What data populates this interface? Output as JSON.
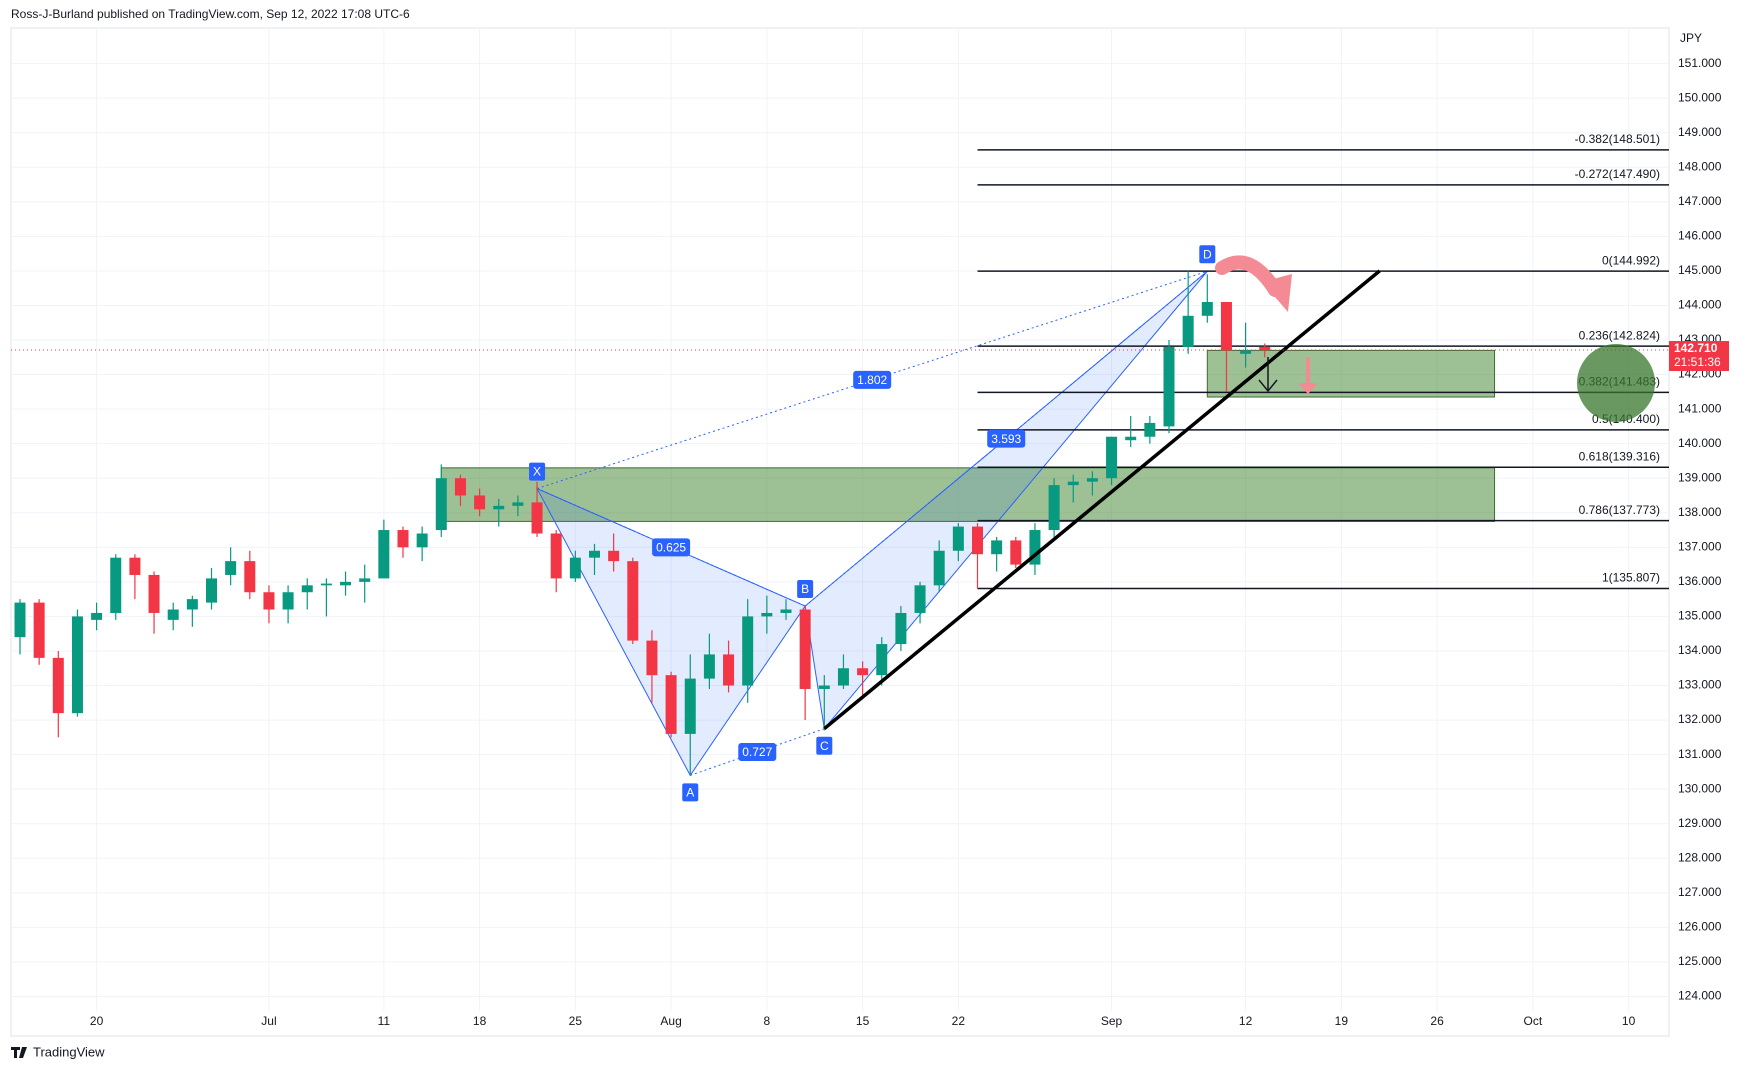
{
  "chart_data": {
    "type": "candlestick",
    "title": "Ross-J-Burland published on TradingView.com, Sep 12, 2022 17:08 UTC-6",
    "currency": "JPY",
    "brand": "TradingView",
    "up_color": "#089981",
    "down_color": "#f23645",
    "grid": true,
    "categories": [
      null,
      null,
      null,
      null,
      "20",
      null,
      null,
      null,
      null,
      null,
      null,
      null,
      null,
      "Jul",
      null,
      null,
      null,
      null,
      null,
      "11",
      null,
      null,
      null,
      null,
      "18",
      null,
      null,
      null,
      null,
      "25",
      null,
      null,
      null,
      null,
      "Aug",
      null,
      null,
      null,
      null,
      "8",
      null,
      null,
      null,
      null,
      "15",
      null,
      null,
      null,
      null,
      "22",
      null,
      null,
      null,
      null,
      null,
      null,
      null,
      "Sep",
      null,
      null,
      null,
      null,
      null,
      null,
      "12",
      null,
      null,
      null,
      null,
      "19",
      null,
      null,
      null,
      null,
      "26",
      null,
      null,
      null,
      null,
      "Oct",
      null,
      null,
      null,
      null,
      "10",
      null,
      null
    ],
    "open": [
      134.4,
      135.4,
      133.8,
      132.2,
      134.9,
      135.1,
      136.7,
      136.2,
      134.9,
      135.2,
      135.4,
      136.2,
      136.6,
      135.7,
      135.2,
      135.7,
      135.9,
      135.9,
      136.0,
      136.1,
      137.5,
      137.0,
      137.5,
      139.0,
      138.5,
      138.1,
      138.2,
      138.3,
      137.4,
      136.1,
      136.7,
      136.9,
      136.6,
      134.3,
      133.3,
      131.6,
      133.2,
      133.9,
      133.0,
      135.0,
      135.1,
      135.2,
      132.9,
      133.0,
      133.5,
      133.3,
      134.2,
      135.1,
      135.9,
      136.9,
      137.6,
      136.8,
      137.2,
      136.5,
      137.5,
      138.8,
      138.9,
      139.0,
      140.1,
      140.2,
      140.5,
      142.8,
      143.7,
      144.1,
      142.6,
      142.8,
      null,
      null,
      null,
      null,
      null,
      null,
      null,
      null,
      null,
      null,
      null,
      null,
      null,
      null,
      null,
      null,
      null,
      null,
      null,
      null,
      null
    ],
    "high": [
      135.5,
      135.5,
      134.0,
      135.2,
      135.4,
      136.8,
      136.8,
      136.3,
      135.4,
      135.6,
      136.4,
      137.0,
      136.9,
      135.9,
      135.9,
      136.1,
      136.1,
      136.3,
      136.5,
      137.8,
      137.6,
      137.6,
      139.4,
      139.1,
      138.7,
      138.4,
      138.5,
      138.9,
      137.5,
      136.9,
      137.1,
      137.4,
      136.7,
      134.6,
      133.4,
      133.9,
      134.5,
      134.3,
      135.5,
      135.6,
      135.5,
      135.3,
      133.3,
      133.9,
      133.7,
      134.4,
      135.3,
      136.0,
      137.2,
      137.7,
      137.7,
      137.3,
      137.3,
      137.7,
      139.0,
      139.1,
      139.2,
      140.2,
      140.8,
      140.8,
      143.0,
      144.99,
      144.9,
      144.1,
      143.5,
      142.9,
      null,
      null,
      null,
      null,
      null,
      null,
      null,
      null,
      null,
      null,
      null,
      null,
      null,
      null,
      null,
      null,
      null,
      null,
      null,
      null,
      null
    ],
    "low": [
      133.9,
      133.6,
      131.5,
      132.1,
      134.6,
      134.9,
      135.5,
      134.5,
      134.6,
      134.7,
      135.2,
      135.9,
      135.5,
      134.8,
      134.8,
      135.2,
      135.0,
      135.6,
      135.4,
      136.1,
      136.7,
      136.6,
      137.3,
      138.2,
      137.9,
      137.6,
      137.9,
      137.3,
      135.7,
      136.0,
      136.2,
      136.3,
      134.2,
      132.5,
      131.5,
      130.4,
      132.9,
      132.8,
      132.5,
      134.5,
      134.9,
      132.0,
      131.7,
      132.9,
      132.6,
      133.0,
      134.0,
      134.8,
      135.7,
      136.6,
      135.8,
      136.3,
      136.4,
      136.2,
      137.3,
      138.3,
      138.5,
      138.8,
      139.9,
      140.0,
      140.3,
      142.6,
      143.5,
      141.5,
      142.2,
      142.5,
      null,
      null,
      null,
      null,
      null,
      null,
      null,
      null,
      null,
      null,
      null,
      null,
      null,
      null,
      null,
      null,
      null,
      null,
      null,
      null,
      null
    ],
    "close": [
      135.4,
      133.8,
      132.2,
      135.0,
      135.1,
      136.7,
      136.2,
      135.1,
      135.2,
      135.5,
      136.1,
      136.6,
      135.7,
      135.2,
      135.7,
      135.9,
      135.95,
      136.0,
      136.1,
      137.5,
      137.0,
      137.4,
      139.0,
      138.5,
      138.1,
      138.2,
      138.3,
      137.4,
      136.1,
      136.7,
      136.9,
      136.6,
      134.3,
      133.3,
      131.6,
      133.2,
      133.9,
      133.0,
      135.0,
      135.1,
      135.2,
      132.9,
      133.0,
      133.5,
      133.3,
      134.2,
      135.1,
      135.9,
      136.9,
      137.6,
      136.8,
      137.2,
      136.5,
      137.5,
      138.8,
      138.9,
      139.0,
      140.2,
      140.2,
      140.6,
      142.8,
      143.7,
      144.1,
      142.7,
      142.7,
      142.71,
      null,
      null,
      null,
      null,
      null,
      null,
      null,
      null,
      null,
      null,
      null,
      null,
      null,
      null,
      null,
      null,
      null,
      null,
      null,
      null,
      null
    ],
    "ylim": [
      123.58,
      152.03
    ],
    "yticks": [
      {
        "value": 124,
        "label": "124.000"
      },
      {
        "value": 125,
        "label": "125.000"
      },
      {
        "value": 126,
        "label": "126.000"
      },
      {
        "value": 127,
        "label": "127.000"
      },
      {
        "value": 128,
        "label": "128.000"
      },
      {
        "value": 129,
        "label": "129.000"
      },
      {
        "value": 130,
        "label": "130.000"
      },
      {
        "value": 131,
        "label": "131.000"
      },
      {
        "value": 132,
        "label": "132.000"
      },
      {
        "value": 133,
        "label": "133.000"
      },
      {
        "value": 134,
        "label": "134.000"
      },
      {
        "value": 135,
        "label": "135.000"
      },
      {
        "value": 136,
        "label": "136.000"
      },
      {
        "value": 137,
        "label": "137.000"
      },
      {
        "value": 138,
        "label": "138.000"
      },
      {
        "value": 139,
        "label": "139.000"
      },
      {
        "value": 140,
        "label": "140.000"
      },
      {
        "value": 141,
        "label": "141.000"
      },
      {
        "value": 142,
        "label": "142.000"
      },
      {
        "value": 143,
        "label": "143.000"
      },
      {
        "value": 144,
        "label": "144.000"
      },
      {
        "value": 145,
        "label": "145.000"
      },
      {
        "value": 146,
        "label": "146.000"
      },
      {
        "value": 147,
        "label": "147.000"
      },
      {
        "value": 148,
        "label": "148.000"
      },
      {
        "value": 149,
        "label": "149.000"
      },
      {
        "value": 150,
        "label": "150.000"
      },
      {
        "value": 151,
        "label": "151.000"
      }
    ],
    "last_price": {
      "value": 142.71,
      "label": "142.710"
    },
    "countdown": "21:51:36",
    "fib": {
      "start": 50,
      "levels": [
        {
          "value": 148.501,
          "label": "-0.382(148.501)"
        },
        {
          "value": 147.49,
          "label": "-0.272(147.490)"
        },
        {
          "value": 144.992,
          "label": "0(144.992)"
        },
        {
          "value": 142.824,
          "label": "0.236(142.824)"
        },
        {
          "value": 141.483,
          "label": "0.382(141.483)"
        },
        {
          "value": 140.4,
          "label": "0.5(140.400)"
        },
        {
          "value": 139.316,
          "label": "0.618(139.316)"
        },
        {
          "value": 137.773,
          "label": "0.786(137.773)"
        },
        {
          "value": 135.807,
          "label": "1(135.807)"
        }
      ]
    },
    "zones": [
      {
        "start": 22,
        "end": 77,
        "top": 139.3,
        "bottom": 137.75
      },
      {
        "start": 62,
        "end": 77,
        "top": 142.7,
        "bottom": 141.35
      }
    ],
    "trendline": {
      "from": {
        "index": 42,
        "price": 131.75
      },
      "to": {
        "index": 71,
        "price": 145.0
      }
    },
    "pattern": {
      "points": [
        {
          "label": "X",
          "index": 27,
          "price": 138.7
        },
        {
          "label": "A",
          "index": 35,
          "price": 130.4
        },
        {
          "label": "B",
          "index": 41,
          "price": 135.3
        },
        {
          "label": "C",
          "index": 42,
          "price": 131.75
        },
        {
          "label": "D",
          "index": 62,
          "price": 144.99
        }
      ],
      "ratios": [
        {
          "value": 1.802,
          "from": 0,
          "to": 4
        },
        {
          "value": 0.625,
          "from": 0,
          "to": 2
        },
        {
          "value": 0.727,
          "from": 1,
          "to": 3
        },
        {
          "value": 3.593,
          "from": 2,
          "to": 4
        }
      ]
    }
  }
}
